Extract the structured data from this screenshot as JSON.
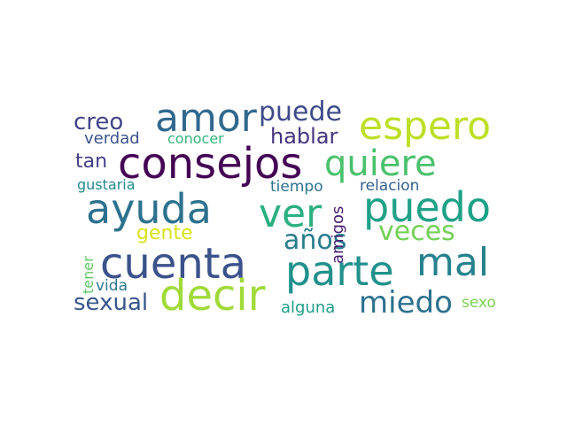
{
  "chart_data": {
    "type": "wordcloud",
    "title": "",
    "words": [
      {
        "text": "consejos",
        "color": "#440154"
      },
      {
        "text": "cuenta",
        "color": "#3b528b"
      },
      {
        "text": "amor",
        "color": "#31688e"
      },
      {
        "text": "ayuda",
        "color": "#2c728e"
      },
      {
        "text": "decir",
        "color": "#a0da39"
      },
      {
        "text": "parte",
        "color": "#21918c"
      },
      {
        "text": "puedo",
        "color": "#1fa187"
      },
      {
        "text": "ver",
        "color": "#2ab07f"
      },
      {
        "text": "espero",
        "color": "#bddf26"
      },
      {
        "text": "quiere",
        "color": "#4ac16d"
      },
      {
        "text": "mal",
        "color": "#26828e"
      },
      {
        "text": "miedo",
        "color": "#2d708e"
      },
      {
        "text": "puede",
        "color": "#3e4a89"
      },
      {
        "text": "años",
        "color": "#287c8e"
      },
      {
        "text": "veces",
        "color": "#73d056"
      },
      {
        "text": "creo",
        "color": "#414487"
      },
      {
        "text": "sexual",
        "color": "#39568c"
      },
      {
        "text": "hablar",
        "color": "#46337e"
      },
      {
        "text": "tan",
        "color": "#433e85"
      },
      {
        "text": "gente",
        "color": "#d8e219"
      },
      {
        "text": "verdad",
        "color": "#3b528b"
      },
      {
        "text": "conocer",
        "color": "#35b779"
      },
      {
        "text": "gustaria",
        "color": "#23898e"
      },
      {
        "text": "tiempo",
        "color": "#2c728e"
      },
      {
        "text": "relacion",
        "color": "#355f8d"
      },
      {
        "text": "vida",
        "color": "#2a788e"
      },
      {
        "text": "alguna",
        "color": "#1f9e89"
      },
      {
        "text": "sexo",
        "color": "#7ad151"
      },
      {
        "text": "amigos",
        "color": "#481f70"
      },
      {
        "text": "tener",
        "color": "#5ec962"
      }
    ]
  }
}
